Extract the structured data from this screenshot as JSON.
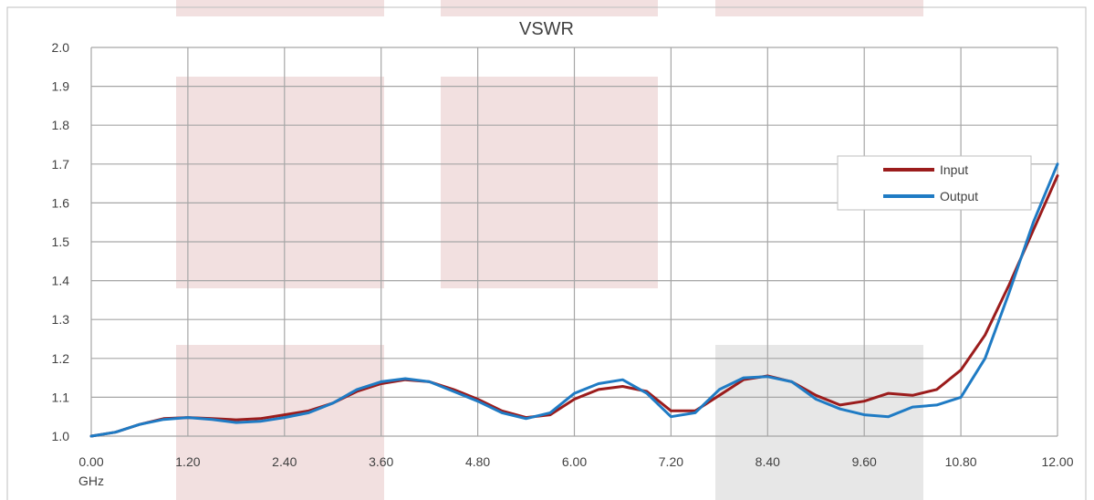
{
  "chart_data": {
    "type": "line",
    "title": "VSWR",
    "xlabel": "GHz",
    "ylabel": "",
    "xlim": [
      0,
      12
    ],
    "ylim": [
      1.0,
      2.0
    ],
    "x_ticks": [
      "0.00",
      "1.20",
      "2.40",
      "3.60",
      "4.80",
      "6.00",
      "7.20",
      "8.40",
      "9.60",
      "10.80",
      "12.00"
    ],
    "y_ticks": [
      "1.0",
      "1.1",
      "1.2",
      "1.3",
      "1.4",
      "1.5",
      "1.6",
      "1.7",
      "1.8",
      "1.9",
      "2.0"
    ],
    "grid": true,
    "legend_position": "top-right",
    "series": [
      {
        "name": "Input",
        "color": "#9b1c1c",
        "x": [
          0,
          0.3,
          0.6,
          0.9,
          1.2,
          1.5,
          1.8,
          2.1,
          2.4,
          2.7,
          3.0,
          3.3,
          3.6,
          3.9,
          4.2,
          4.5,
          4.8,
          5.1,
          5.4,
          5.7,
          6.0,
          6.3,
          6.6,
          6.9,
          7.2,
          7.5,
          7.8,
          8.1,
          8.4,
          8.7,
          9.0,
          9.3,
          9.6,
          9.9,
          10.2,
          10.5,
          10.8,
          11.1,
          11.4,
          11.7,
          12.0
        ],
        "y": [
          1.0,
          1.01,
          1.03,
          1.045,
          1.048,
          1.045,
          1.042,
          1.045,
          1.055,
          1.065,
          1.085,
          1.115,
          1.135,
          1.145,
          1.14,
          1.12,
          1.095,
          1.065,
          1.048,
          1.055,
          1.095,
          1.12,
          1.128,
          1.115,
          1.065,
          1.065,
          1.105,
          1.145,
          1.155,
          1.14,
          1.105,
          1.08,
          1.09,
          1.11,
          1.105,
          1.12,
          1.17,
          1.26,
          1.39,
          1.53,
          1.67
        ]
      },
      {
        "name": "Output",
        "color": "#1f7bc4",
        "x": [
          0,
          0.3,
          0.6,
          0.9,
          1.2,
          1.5,
          1.8,
          2.1,
          2.4,
          2.7,
          3.0,
          3.3,
          3.6,
          3.9,
          4.2,
          4.5,
          4.8,
          5.1,
          5.4,
          5.7,
          6.0,
          6.3,
          6.6,
          6.9,
          7.2,
          7.5,
          7.8,
          8.1,
          8.4,
          8.7,
          9.0,
          9.3,
          9.6,
          9.9,
          10.2,
          10.5,
          10.8,
          11.1,
          11.4,
          11.7,
          12.0
        ],
        "y": [
          1.0,
          1.01,
          1.03,
          1.043,
          1.048,
          1.043,
          1.035,
          1.038,
          1.048,
          1.06,
          1.085,
          1.12,
          1.14,
          1.148,
          1.14,
          1.115,
          1.09,
          1.06,
          1.045,
          1.06,
          1.11,
          1.135,
          1.145,
          1.11,
          1.05,
          1.06,
          1.12,
          1.15,
          1.153,
          1.14,
          1.095,
          1.07,
          1.055,
          1.05,
          1.075,
          1.08,
          1.1,
          1.2,
          1.37,
          1.55,
          1.7
        ]
      }
    ]
  },
  "overlay_color": "#e8c7c7",
  "gray_overlay_color": "#d4d4d4"
}
